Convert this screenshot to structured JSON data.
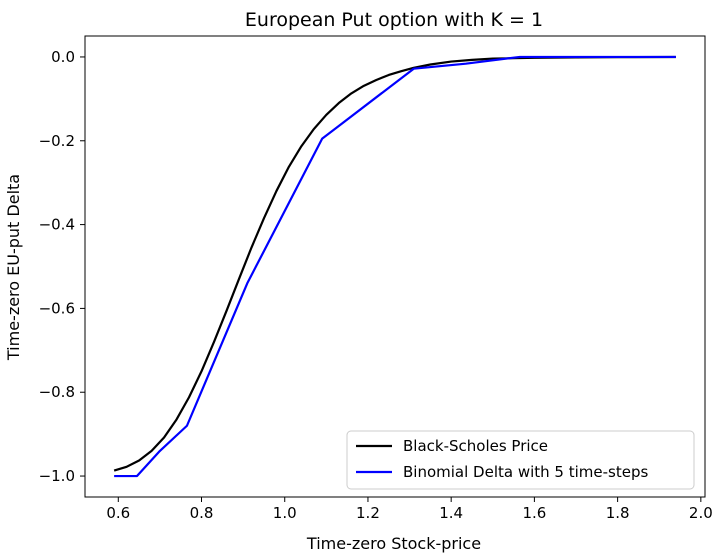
{
  "chart_data": {
    "type": "line",
    "title": "European Put option with K = 1",
    "xlabel": "Time-zero Stock-price",
    "ylabel": "Time-zero EU-put Delta",
    "xlim": [
      0.52,
      2.01
    ],
    "ylim": [
      -1.05,
      0.05
    ],
    "x_ticks": [
      0.6,
      0.8,
      1.0,
      1.2,
      1.4,
      1.6,
      1.8,
      2.0
    ],
    "x_tick_labels": [
      "0.6",
      "0.8",
      "1.0",
      "1.2",
      "1.4",
      "1.6",
      "1.8",
      "2.0"
    ],
    "y_ticks": [
      0.0,
      -0.2,
      -0.4,
      -0.6,
      -0.8,
      -1.0
    ],
    "y_tick_labels": [
      "0.0",
      "−0.2",
      "−0.4",
      "−0.6",
      "−0.8",
      "−1.0"
    ],
    "grid": false,
    "legend_position": "lower-right",
    "series": [
      {
        "name": "Black-Scholes Price",
        "color": "#000000",
        "x": [
          0.59,
          0.62,
          0.65,
          0.68,
          0.71,
          0.74,
          0.77,
          0.8,
          0.83,
          0.86,
          0.89,
          0.92,
          0.95,
          0.98,
          1.01,
          1.04,
          1.07,
          1.1,
          1.13,
          1.16,
          1.19,
          1.22,
          1.25,
          1.28,
          1.31,
          1.35,
          1.4,
          1.45,
          1.5,
          1.55,
          1.6,
          1.7,
          1.8,
          1.94
        ],
        "y": [
          -0.987,
          -0.978,
          -0.963,
          -0.94,
          -0.908,
          -0.865,
          -0.812,
          -0.75,
          -0.68,
          -0.606,
          -0.53,
          -0.455,
          -0.385,
          -0.32,
          -0.262,
          -0.213,
          -0.172,
          -0.138,
          -0.11,
          -0.087,
          -0.069,
          -0.055,
          -0.043,
          -0.034,
          -0.026,
          -0.018,
          -0.011,
          -0.007,
          -0.004,
          -0.003,
          -0.002,
          -0.001,
          -0.0005,
          -0.0001
        ]
      },
      {
        "name": "Binomial Delta with 5 time-steps",
        "color": "#0000ff",
        "x": [
          0.59,
          0.645,
          0.7,
          0.765,
          0.91,
          1.09,
          1.31,
          1.435,
          1.565,
          1.94
        ],
        "y": [
          -1.0,
          -1.0,
          -0.94,
          -0.88,
          -0.54,
          -0.195,
          -0.028,
          -0.016,
          0.0,
          0.0
        ]
      }
    ]
  }
}
